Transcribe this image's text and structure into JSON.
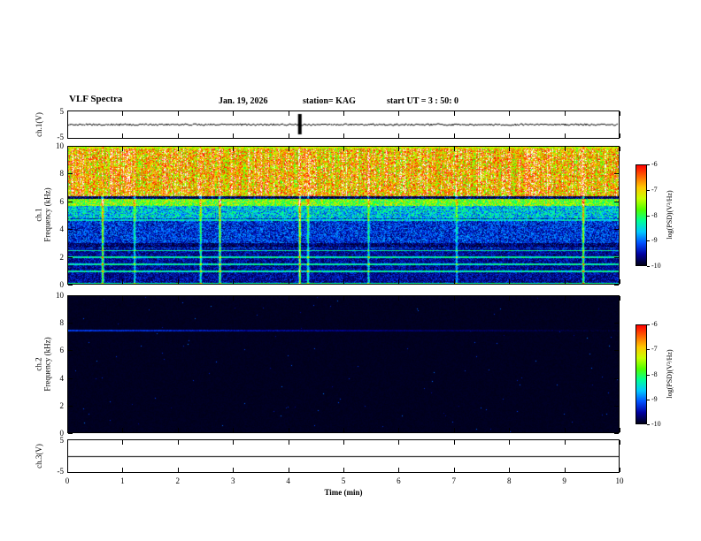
{
  "header": {
    "title": "VLF Spectra",
    "date": "Jan. 19, 2026",
    "station": "station= KAG",
    "start_ut": "start UT =  3 : 50: 0"
  },
  "axes": {
    "time_label": "Time (min)",
    "time_ticks": [
      "0",
      "1",
      "2",
      "3",
      "4",
      "5",
      "6",
      "7",
      "8",
      "9",
      "10"
    ],
    "freq_ticks": [
      "0",
      "2",
      "4",
      "6",
      "8",
      "10"
    ],
    "volt_tick_top": "5",
    "volt_tick_bottom": "-5",
    "ch1_volt_label": "ch.1(V)",
    "ch1_freq_label_line1": "ch.1",
    "ch1_freq_label_line2": "Frequency (kHz)",
    "ch2_freq_label_line1": "ch.2",
    "ch2_freq_label_line2": "Frequency (kHz)",
    "ch3_volt_label": "ch.3(V)"
  },
  "colorbar": {
    "label": "log(PSD)(V²/Hz)",
    "ticks": [
      "-6",
      "-7",
      "-8",
      "-9",
      "-10"
    ],
    "gradient": [
      "#ff0000",
      "#ff6400",
      "#ffc800",
      "#c8ff00",
      "#50ff00",
      "#00ff96",
      "#00c8ff",
      "#0050ff",
      "#0000a0",
      "#000018"
    ]
  },
  "chart_data": [
    {
      "type": "line",
      "name": "ch1-waveform",
      "ylabel": "ch.1(V)",
      "xlim": [
        0,
        10
      ],
      "ylim": [
        -5,
        5
      ],
      "description": "flat noisy baseline near 0 V with one large transient spike",
      "spike_time_min": 4.2
    },
    {
      "type": "heatmap",
      "name": "ch1-spectrogram",
      "xlabel": "Time (min)",
      "ylabel": "Frequency (kHz)",
      "zlabel": "log(PSD)(V²/Hz)",
      "xlim": [
        0,
        10
      ],
      "ylim": [
        0,
        10
      ],
      "zlim": [
        -10,
        -6
      ],
      "bands": [
        {
          "freq_khz": [
            6.5,
            10
          ],
          "level_db": -6.6,
          "appearance": "intense red/yellow broadband hiss with white saturated patches and vertical striping"
        },
        {
          "freq_khz": [
            5.7,
            6.5
          ],
          "level_db": -7.4,
          "appearance": "green-yellow"
        },
        {
          "freq_khz": [
            4.8,
            5.7
          ],
          "level_db": -8.4,
          "appearance": "cyan-green speckle on blue"
        },
        {
          "freq_khz": [
            2.6,
            4.8
          ],
          "level_db": -9.1,
          "appearance": "blue"
        },
        {
          "freq_khz": [
            0,
            2.6
          ],
          "level_db": -9.5,
          "appearance": "dark blue"
        }
      ],
      "narrowband_lines_khz": [
        0.95,
        1.45,
        1.95,
        2.45
      ],
      "dark_line_khz": 6.3,
      "bright_line_khz": 4.65,
      "vertical_streaks": [
        {
          "t": 0.62,
          "s": 2.4
        },
        {
          "t": 1.2,
          "s": 1.4
        },
        {
          "t": 2.4,
          "s": 1.6
        },
        {
          "t": 2.75,
          "s": 2.0
        },
        {
          "t": 4.2,
          "s": 2.6
        },
        {
          "t": 4.35,
          "s": 1.6
        },
        {
          "t": 5.45,
          "s": 1.3
        },
        {
          "t": 7.05,
          "s": 1.2
        },
        {
          "t": 9.35,
          "s": 2.3
        }
      ]
    },
    {
      "type": "heatmap",
      "name": "ch2-spectrogram",
      "xlabel": "Time (min)",
      "ylabel": "Frequency (kHz)",
      "zlabel": "log(PSD)(V²/Hz)",
      "xlim": [
        0,
        10
      ],
      "ylim": [
        0,
        10
      ],
      "zlim": [
        -10,
        -6
      ],
      "background_level_db": -10,
      "appearance": "near-black noise floor",
      "faint_line_khz": 7.5,
      "faint_line_level_db": -8.9
    },
    {
      "type": "line",
      "name": "ch3-waveform",
      "ylabel": "ch.3(V)",
      "xlim": [
        0,
        10
      ],
      "ylim": [
        -5,
        5
      ],
      "description": "perfectly flat line at 0 V"
    }
  ]
}
